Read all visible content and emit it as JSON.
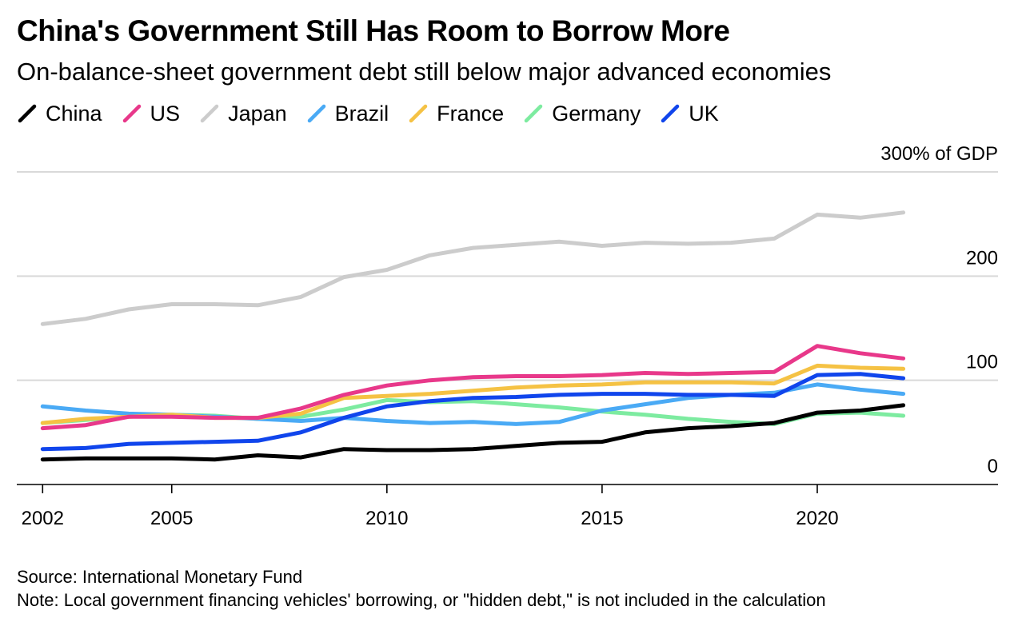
{
  "title": "China's Government Still Has Room to Borrow More",
  "subtitle": "On-balance-sheet government debt still below major advanced economies",
  "source": "Source: International Monetary Fund",
  "note": "Note: Local government financing vehicles' borrowing, or \"hidden debt,\" is not included in the calculation",
  "chart_data": {
    "type": "line",
    "ylabel": "300% of GDP",
    "ylim": [
      0,
      300
    ],
    "yticks": [
      {
        "value": 0,
        "label": "0"
      },
      {
        "value": 100,
        "label": "100"
      },
      {
        "value": 200,
        "label": "200"
      },
      {
        "value": 300,
        "label": "300% of GDP"
      }
    ],
    "xticks": [
      {
        "value": 2002,
        "label": "2002"
      },
      {
        "value": 2005,
        "label": "2005"
      },
      {
        "value": 2010,
        "label": "2010"
      },
      {
        "value": 2015,
        "label": "2015"
      },
      {
        "value": 2020,
        "label": "2020"
      }
    ],
    "xlim": [
      2001.4,
      2024.2
    ],
    "grid": true,
    "legend": "top-left",
    "x": [
      2002,
      2003,
      2004,
      2005,
      2006,
      2007,
      2008,
      2009,
      2010,
      2011,
      2012,
      2013,
      2014,
      2015,
      2016,
      2017,
      2018,
      2019,
      2020,
      2021,
      2022
    ],
    "series": [
      {
        "name": "Japan",
        "color": "#cccccc",
        "values": [
          154,
          159,
          168,
          173,
          173,
          172,
          180,
          199,
          206,
          220,
          227,
          230,
          233,
          229,
          232,
          231,
          232,
          236,
          259,
          256,
          261
        ]
      },
      {
        "name": "Germany",
        "color": "#7deba0",
        "values": [
          59,
          62,
          65,
          67,
          66,
          63,
          65,
          72,
          81,
          79,
          80,
          77,
          74,
          70,
          67,
          63,
          60,
          58,
          68,
          69,
          66
        ]
      },
      {
        "name": "Brazil",
        "color": "#4aaaf5",
        "values": [
          75,
          71,
          68,
          67,
          65,
          63,
          61,
          64,
          61,
          59,
          60,
          58,
          60,
          71,
          77,
          83,
          86,
          88,
          96,
          91,
          87
        ]
      },
      {
        "name": "France",
        "color": "#f5c244",
        "values": [
          59,
          63,
          65,
          67,
          64,
          64,
          68,
          83,
          85,
          87,
          90,
          93,
          95,
          96,
          98,
          98,
          98,
          97,
          114,
          112,
          111
        ]
      },
      {
        "name": "UK",
        "color": "#1045ec",
        "values": [
          34,
          35,
          39,
          40,
          41,
          42,
          50,
          64,
          75,
          80,
          83,
          84,
          86,
          87,
          87,
          86,
          86,
          85,
          105,
          106,
          102
        ]
      },
      {
        "name": "US",
        "color": "#e8388a",
        "values": [
          54,
          57,
          65,
          65,
          64,
          64,
          73,
          86,
          95,
          100,
          103,
          104,
          104,
          105,
          107,
          106,
          107,
          108,
          133,
          126,
          121
        ]
      },
      {
        "name": "China",
        "color": "#000000",
        "values": [
          24,
          25,
          25,
          25,
          24,
          28,
          26,
          34,
          33,
          33,
          34,
          37,
          40,
          41,
          50,
          54,
          56,
          59,
          69,
          71,
          76
        ]
      }
    ]
  }
}
